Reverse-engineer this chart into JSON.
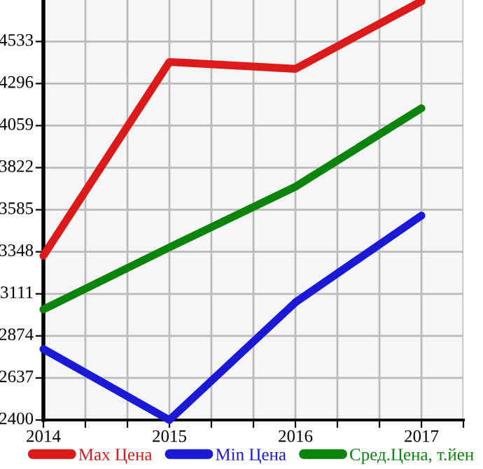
{
  "chart_data": {
    "type": "line",
    "x": [
      2014,
      2015,
      2016,
      2017
    ],
    "series": [
      {
        "name": "Max Цена",
        "color": "#dd1a1a",
        "values": [
          3326,
          4418,
          4379,
          4760
        ]
      },
      {
        "name": "Min Цена",
        "color": "#1a1ad6",
        "values": [
          2800,
          2400,
          3063,
          3552
        ]
      },
      {
        "name": "Сред.Цена, т.йен",
        "color": "#0a840a",
        "values": [
          3023,
          3373,
          3715,
          4157
        ]
      }
    ],
    "xlim": [
      2014,
      2017.333
    ],
    "xticks": [
      2014,
      {
        "value": 2014.333,
        "label": null
      },
      {
        "value": 2014.667,
        "label": null
      },
      2015,
      {
        "value": 2015.333,
        "label": null
      },
      {
        "value": 2015.667,
        "label": null
      },
      2016,
      {
        "value": 2016.333,
        "label": null
      },
      {
        "value": 2016.667,
        "label": null
      },
      2017,
      {
        "value": 2017.333,
        "label": null
      }
    ],
    "ylim": [
      2400,
      4767
    ],
    "yticks": [
      2400,
      2637,
      2874,
      3111,
      3348,
      3585,
      3822,
      4059,
      4296,
      4533
    ],
    "grid": true,
    "legend": "bottom",
    "marker": "none",
    "line_style": "solid"
  }
}
